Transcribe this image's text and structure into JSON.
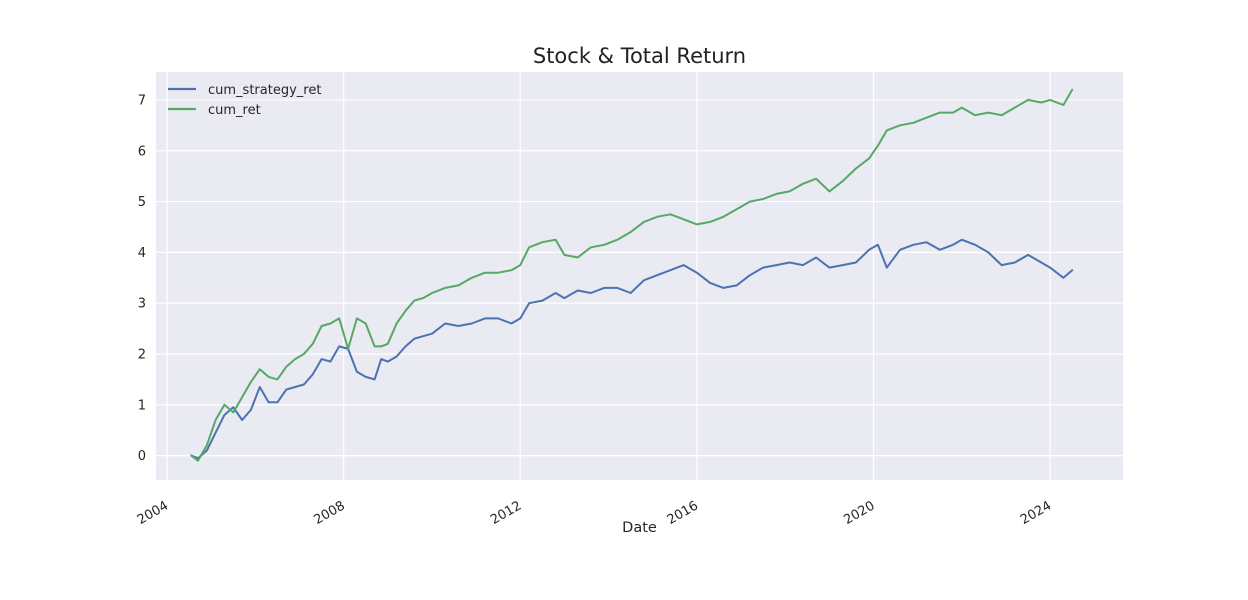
{
  "chart_data": {
    "type": "line",
    "title": "Stock & Total Return",
    "xlabel": "Date",
    "ylabel": "",
    "x_ticks": [
      "2004",
      "2008",
      "2012",
      "2016",
      "2020",
      "2024"
    ],
    "y_ticks": [
      0,
      1,
      2,
      3,
      4,
      5,
      6,
      7
    ],
    "xlim": [
      2003.75,
      2025.65
    ],
    "ylim": [
      -0.48,
      7.55
    ],
    "grid": true,
    "legend_position": "top-left",
    "series": [
      {
        "name": "cum_strategy_ret",
        "color": "#4c72b0",
        "x": [
          2004.55,
          2004.7,
          2004.9,
          2005.1,
          2005.3,
          2005.5,
          2005.7,
          2005.9,
          2006.1,
          2006.3,
          2006.5,
          2006.7,
          2006.9,
          2007.1,
          2007.3,
          2007.5,
          2007.7,
          2007.9,
          2008.1,
          2008.3,
          2008.5,
          2008.7,
          2008.85,
          2009.0,
          2009.2,
          2009.4,
          2009.6,
          2009.8,
          2010.0,
          2010.3,
          2010.6,
          2010.9,
          2011.2,
          2011.5,
          2011.8,
          2012.0,
          2012.2,
          2012.5,
          2012.8,
          2013.0,
          2013.3,
          2013.6,
          2013.9,
          2014.2,
          2014.5,
          2014.8,
          2015.1,
          2015.4,
          2015.7,
          2016.0,
          2016.3,
          2016.6,
          2016.9,
          2017.2,
          2017.5,
          2017.8,
          2018.1,
          2018.4,
          2018.7,
          2019.0,
          2019.3,
          2019.6,
          2019.9,
          2020.1,
          2020.3,
          2020.6,
          2020.9,
          2021.2,
          2021.5,
          2021.8,
          2022.0,
          2022.3,
          2022.6,
          2022.9,
          2023.2,
          2023.5,
          2023.8,
          2024.0,
          2024.3,
          2024.5
        ],
        "y": [
          0.0,
          -0.05,
          0.1,
          0.45,
          0.8,
          0.95,
          0.7,
          0.9,
          1.35,
          1.05,
          1.05,
          1.3,
          1.35,
          1.4,
          1.6,
          1.9,
          1.85,
          2.15,
          2.1,
          1.65,
          1.55,
          1.5,
          1.9,
          1.85,
          1.95,
          2.15,
          2.3,
          2.35,
          2.4,
          2.6,
          2.55,
          2.6,
          2.7,
          2.7,
          2.6,
          2.7,
          3.0,
          3.05,
          3.2,
          3.1,
          3.25,
          3.2,
          3.3,
          3.3,
          3.2,
          3.45,
          3.55,
          3.65,
          3.75,
          3.6,
          3.4,
          3.3,
          3.35,
          3.55,
          3.7,
          3.75,
          3.8,
          3.75,
          3.9,
          3.7,
          3.75,
          3.8,
          4.05,
          4.15,
          3.7,
          4.05,
          4.15,
          4.2,
          4.05,
          4.15,
          4.25,
          4.15,
          4.0,
          3.75,
          3.8,
          3.95,
          3.8,
          3.7,
          3.5,
          3.65
        ]
      },
      {
        "name": "cum_ret",
        "color": "#55a868",
        "x": [
          2004.55,
          2004.7,
          2004.9,
          2005.1,
          2005.3,
          2005.5,
          2005.7,
          2005.9,
          2006.1,
          2006.3,
          2006.5,
          2006.7,
          2006.9,
          2007.1,
          2007.3,
          2007.5,
          2007.7,
          2007.9,
          2008.1,
          2008.3,
          2008.5,
          2008.7,
          2008.85,
          2009.0,
          2009.2,
          2009.4,
          2009.6,
          2009.8,
          2010.0,
          2010.3,
          2010.6,
          2010.9,
          2011.2,
          2011.5,
          2011.8,
          2012.0,
          2012.2,
          2012.5,
          2012.8,
          2013.0,
          2013.3,
          2013.6,
          2013.9,
          2014.2,
          2014.5,
          2014.8,
          2015.1,
          2015.4,
          2015.7,
          2016.0,
          2016.3,
          2016.6,
          2016.9,
          2017.2,
          2017.5,
          2017.8,
          2018.1,
          2018.4,
          2018.7,
          2019.0,
          2019.3,
          2019.6,
          2019.9,
          2020.1,
          2020.3,
          2020.6,
          2020.9,
          2021.2,
          2021.5,
          2021.8,
          2022.0,
          2022.3,
          2022.6,
          2022.9,
          2023.2,
          2023.5,
          2023.8,
          2024.0,
          2024.3,
          2024.5
        ],
        "y": [
          0.0,
          -0.1,
          0.2,
          0.7,
          1.0,
          0.85,
          1.15,
          1.45,
          1.7,
          1.55,
          1.5,
          1.75,
          1.9,
          2.0,
          2.2,
          2.55,
          2.6,
          2.7,
          2.1,
          2.7,
          2.6,
          2.15,
          2.15,
          2.2,
          2.6,
          2.85,
          3.05,
          3.1,
          3.2,
          3.3,
          3.35,
          3.5,
          3.6,
          3.6,
          3.65,
          3.75,
          4.1,
          4.2,
          4.25,
          3.95,
          3.9,
          4.1,
          4.15,
          4.25,
          4.4,
          4.6,
          4.7,
          4.75,
          4.65,
          4.55,
          4.6,
          4.7,
          4.85,
          5.0,
          5.05,
          5.15,
          5.2,
          5.35,
          5.45,
          5.2,
          5.4,
          5.65,
          5.85,
          6.1,
          6.4,
          6.5,
          6.55,
          6.65,
          6.75,
          6.75,
          6.85,
          6.7,
          6.75,
          6.7,
          6.85,
          7.0,
          6.95,
          7.0,
          6.9,
          7.2
        ]
      }
    ]
  }
}
